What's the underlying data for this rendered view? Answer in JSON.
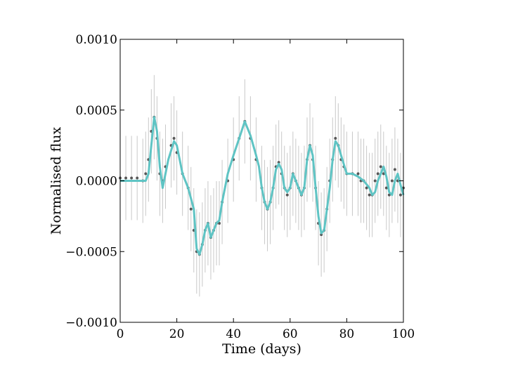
{
  "chart_data": {
    "type": "scatter",
    "title": "",
    "xlabel": "Time (days)",
    "ylabel": "Normalised flux",
    "xlim": [
      0,
      100
    ],
    "ylim": [
      -0.001,
      0.001
    ],
    "x_ticks": [
      0,
      20,
      40,
      60,
      80,
      100
    ],
    "x_tick_labels": [
      "0",
      "20",
      "40",
      "60",
      "80",
      "100"
    ],
    "y_ticks": [
      -0.001,
      -0.0005,
      0.0,
      0.0005,
      0.001
    ],
    "y_tick_labels": [
      "−0.0010",
      "−0.0005",
      "0.0000",
      "0.0005",
      "0.0010"
    ],
    "grid": false,
    "legend": "none",
    "colors": {
      "points": "#333333",
      "error_bars": "#c8c8c8",
      "model_line": "#5fc4c4"
    },
    "series": [
      {
        "kind": "scatter-with-errorbars",
        "x": [
          0,
          2,
          4,
          6,
          8,
          9,
          10,
          11,
          12,
          13,
          14,
          15,
          16,
          18,
          19,
          20,
          22,
          24,
          25,
          26,
          27,
          28,
          29,
          30,
          31,
          32,
          33,
          34,
          35,
          36,
          38,
          40,
          42,
          44,
          46,
          48,
          50,
          51,
          52,
          53,
          54,
          55,
          56,
          57,
          58,
          59,
          60,
          61,
          62,
          63,
          64,
          65,
          66,
          67,
          68,
          69,
          70,
          71,
          72,
          73,
          74,
          75,
          76,
          77,
          78,
          79,
          80,
          82,
          84,
          85,
          86,
          87,
          88,
          89,
          90,
          91,
          92,
          93,
          94,
          95,
          96,
          97,
          98,
          99,
          100
        ],
        "y": [
          2e-05,
          2e-05,
          2e-05,
          2e-05,
          0.0,
          5e-05,
          0.00015,
          0.00035,
          0.00045,
          0.0003,
          5e-05,
          0.0,
          0.0001,
          0.00025,
          0.0003,
          0.0002,
          5e-05,
          -5e-05,
          -0.0002,
          -0.00035,
          -0.0005,
          -0.00052,
          -0.00045,
          -0.00035,
          -0.0003,
          -0.0004,
          -0.00035,
          -0.0003,
          -0.0003,
          -0.00015,
          0.0,
          0.00015,
          0.0003,
          0.00042,
          0.0003,
          0.00015,
          -5e-05,
          -0.00015,
          -0.0002,
          -0.00015,
          -5e-05,
          0.0001,
          0.00013,
          5e-05,
          -5e-05,
          -0.0001,
          -5e-05,
          5e-05,
          0.0,
          -5e-05,
          -0.0001,
          -5e-05,
          0.00015,
          0.00025,
          0.00015,
          -5e-05,
          -0.0003,
          -0.00038,
          -0.00035,
          -0.0002,
          0.0,
          0.00015,
          0.0003,
          0.00025,
          0.00015,
          0.0001,
          5e-05,
          5e-05,
          5e-05,
          0.0,
          0.0,
          -5e-05,
          -0.0001,
          -0.0001,
          0.0,
          5e-05,
          0.0001,
          5e-05,
          -5e-05,
          -0.0001,
          0.0,
          8e-05,
          0.0,
          -0.0001,
          -5e-05
        ]
      },
      {
        "kind": "model-line",
        "x": [
          0,
          5,
          9,
          10,
          11,
          12,
          13,
          14,
          15,
          17,
          19,
          20,
          22,
          24,
          26,
          27,
          28,
          29,
          30,
          31,
          32,
          33,
          34,
          35,
          36,
          38,
          40,
          42,
          44,
          46,
          48,
          49,
          50,
          51,
          52,
          53,
          54,
          55,
          56,
          57,
          58,
          59,
          60,
          61,
          62,
          63,
          64,
          65,
          66,
          67,
          68,
          69,
          70,
          71,
          72,
          73,
          74,
          75,
          76,
          77,
          78,
          80,
          82,
          84,
          86,
          88,
          89,
          90,
          91,
          92,
          93,
          94,
          95,
          96,
          97,
          98,
          99,
          100
        ],
        "y": [
          0.0,
          0.0,
          0.0,
          5e-05,
          0.00025,
          0.00045,
          0.00035,
          0.0001,
          -5e-05,
          0.00015,
          0.00028,
          0.00025,
          5e-05,
          -5e-05,
          -0.0002,
          -0.00048,
          -0.00052,
          -0.00045,
          -0.00035,
          -0.0003,
          -0.0004,
          -0.00035,
          -0.0003,
          -0.00028,
          -0.00015,
          5e-05,
          0.00018,
          0.0003,
          0.00042,
          0.00032,
          0.00018,
          0.0001,
          -5e-05,
          -0.00015,
          -0.0002,
          -0.00015,
          -5e-05,
          8e-05,
          0.00012,
          8e-05,
          -5e-05,
          -8e-05,
          -5e-05,
          5e-05,
          0.0,
          -5e-05,
          -0.0001,
          -5e-05,
          0.00015,
          0.00025,
          0.00018,
          -5e-05,
          -0.00025,
          -0.00037,
          -0.00035,
          -0.0002,
          -5e-05,
          0.00015,
          0.00028,
          0.00025,
          0.00018,
          5e-05,
          5e-05,
          3e-05,
          0.0,
          -5e-05,
          -0.0001,
          -8e-05,
          0.0,
          5e-05,
          0.0001,
          3e-05,
          -8e-05,
          -0.0001,
          0.0,
          5e-05,
          -3e-05,
          -0.0001
        ]
      }
    ]
  }
}
